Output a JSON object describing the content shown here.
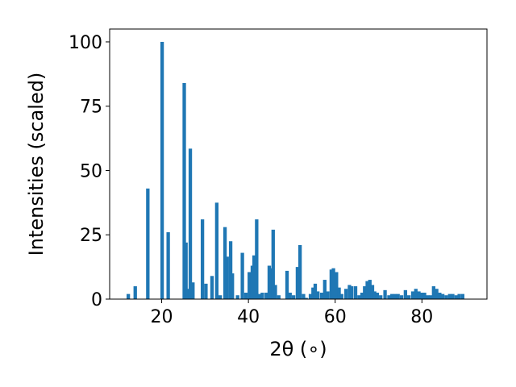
{
  "chart_data": {
    "type": "bar",
    "title": "",
    "xlabel": "2θ (∘)",
    "ylabel": "Intensities (scaled)",
    "xlim": [
      8,
      95
    ],
    "ylim": [
      0,
      105
    ],
    "xticks": [
      20,
      40,
      60,
      80
    ],
    "yticks": [
      0,
      25,
      50,
      75,
      100
    ],
    "grid": false,
    "color": "#1f77b4",
    "bar_width": 0.8,
    "x": [
      12.3,
      13.9,
      16.8,
      20.1,
      21.5,
      25.2,
      25.6,
      26.0,
      26.6,
      27.2,
      29.4,
      30.2,
      31.6,
      32.7,
      33.5,
      34.6,
      35.1,
      35.9,
      36.3,
      37.5,
      38.6,
      39.4,
      40.2,
      40.9,
      41.3,
      41.9,
      42.6,
      43.2,
      44.1,
      44.8,
      45.3,
      45.7,
      46.2,
      47.0,
      48.9,
      49.6,
      50.4,
      51.3,
      51.9,
      52.7,
      53.3,
      54.3,
      54.9,
      55.4,
      56.0,
      56.9,
      57.6,
      58.3,
      59.1,
      59.6,
      60.3,
      60.9,
      61.5,
      62.5,
      63.3,
      63.8,
      64.7,
      65.5,
      66.2,
      66.8,
      67.4,
      68.0,
      68.6,
      69.1,
      69.7,
      70.5,
      71.5,
      72.4,
      73.1,
      73.8,
      74.5,
      75.3,
      76.2,
      77.0,
      77.9,
      78.6,
      79.3,
      79.9,
      80.6,
      81.3,
      82.0,
      82.7,
      83.4,
      84.1,
      84.8,
      85.6,
      86.4,
      87.1,
      87.9,
      88.6,
      89.4
    ],
    "values": [
      2,
      5,
      43,
      100,
      26,
      84,
      22,
      4,
      58.5,
      6.5,
      31,
      6,
      9,
      37.5,
      1.5,
      28,
      16.5,
      22.5,
      10,
      1.5,
      18,
      2.5,
      10.5,
      13,
      17,
      31,
      2,
      2.5,
      2.5,
      13,
      12,
      27,
      5.5,
      1.5,
      11,
      2.5,
      1.5,
      12.5,
      21,
      2,
      0.5,
      2,
      4.5,
      6,
      3,
      2.5,
      7.5,
      3,
      11.5,
      12,
      10.5,
      4.5,
      2,
      4,
      5.5,
      5,
      5,
      1.5,
      2.5,
      5,
      7,
      7.5,
      5.5,
      3,
      2.5,
      1.5,
      3.5,
      1.5,
      2,
      2,
      2,
      1.5,
      3.5,
      1.5,
      3,
      4,
      3,
      2.5,
      2.5,
      1.5,
      1.5,
      5,
      4,
      2.5,
      2,
      1.5,
      2,
      2,
      1.5,
      2,
      2
    ]
  }
}
